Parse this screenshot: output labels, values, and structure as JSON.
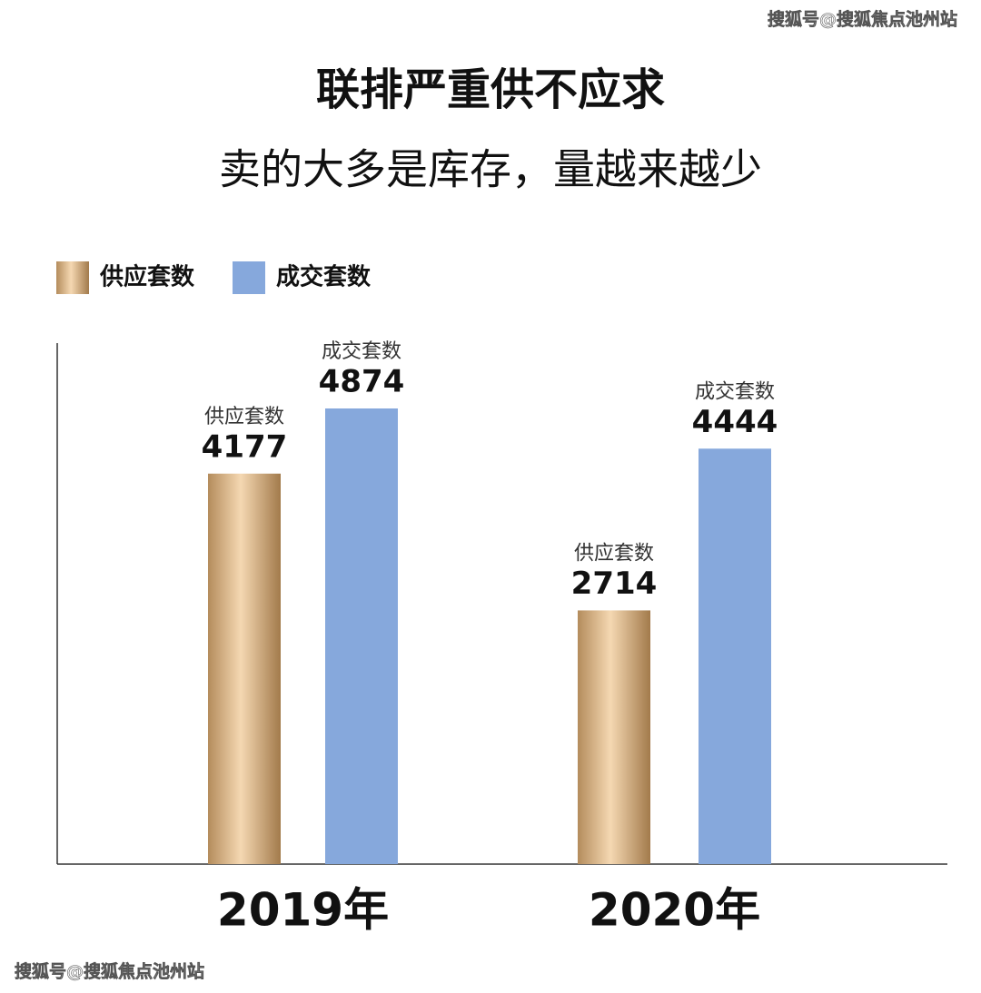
{
  "chart_data": {
    "type": "bar",
    "title": "联排严重供不应求",
    "subtitle": "卖的大多是库存，量越来越少",
    "categories": [
      "2019年",
      "2020年"
    ],
    "series": [
      {
        "name": "供应套数",
        "color": "#f5d8b2",
        "values": [
          4177,
          2714
        ]
      },
      {
        "name": "成交套数",
        "color": "#86a8dc",
        "values": [
          4874,
          4444
        ]
      }
    ],
    "legend": "top-left"
  },
  "watermarks": [
    "搜狐号@搜狐焦点池州站",
    "搜狐号@搜狐焦点池州站"
  ]
}
